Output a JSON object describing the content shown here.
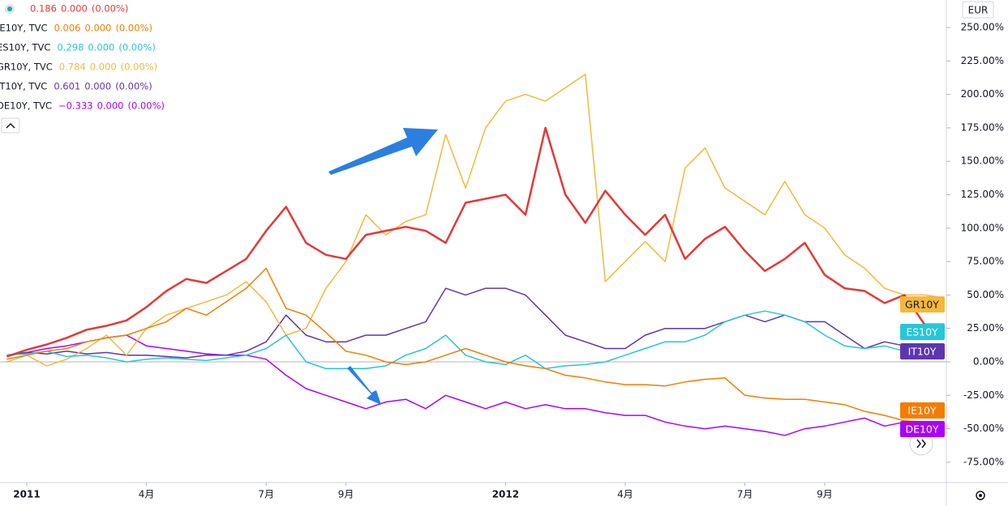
{
  "chart_data": {
    "type": "line",
    "currency": "EUR",
    "categories": [
      null,
      "2011",
      null,
      null,
      null,
      null,
      null,
      "4月",
      null,
      null,
      null,
      null,
      null,
      "7月",
      null,
      null,
      null,
      "9月",
      null,
      null,
      null,
      null,
      null,
      null,
      null,
      "2012",
      null,
      null,
      null,
      null,
      null,
      "4月",
      null,
      null,
      null,
      null,
      null,
      "7月",
      null,
      null,
      null,
      "9月",
      null,
      null,
      null,
      null,
      null,
      null
    ],
    "ylim": [
      -89.6,
      270.6
    ],
    "yticks": [
      {
        "value": 250,
        "label": "250.00%"
      },
      {
        "value": 225,
        "label": "225.00%"
      },
      {
        "value": 200,
        "label": "200.00%"
      },
      {
        "value": 175,
        "label": "175.00%"
      },
      {
        "value": 150,
        "label": "150.00%"
      },
      {
        "value": 125,
        "label": "125.00%"
      },
      {
        "value": 100,
        "label": "100.00%"
      },
      {
        "value": 75,
        "label": "75.00%"
      },
      {
        "value": 50,
        "label": "50.00%"
      },
      {
        "value": 25,
        "label": "25.00%"
      },
      {
        "value": 0,
        "label": "0.00%"
      },
      {
        "value": -25,
        "label": "-25.00%"
      },
      {
        "value": -50,
        "label": "-50.00%"
      },
      {
        "value": -75,
        "label": "-75.00%"
      }
    ],
    "series": [
      {
        "color": "#e53935",
        "last": "0.186",
        "change": "0.000",
        "change_pct": "(0.00%)",
        "values": [
          4,
          9,
          13,
          18,
          24,
          27,
          31,
          41,
          53,
          62,
          59,
          68,
          77,
          98,
          116,
          89,
          80,
          77,
          95,
          98,
          101,
          98,
          89,
          119,
          122,
          125,
          110,
          175,
          125,
          104,
          128,
          110,
          95,
          110,
          77,
          92,
          101,
          83,
          68,
          77,
          89,
          65,
          55,
          53,
          44,
          50,
          28,
          28
        ]
      },
      {
        "name": "IE10Y, TVC",
        "tag": "IE10Y",
        "color": "#f57c00",
        "last": "0.006",
        "change": "0.000",
        "change_pct": "(0.00%)",
        "values": [
          2,
          5,
          8,
          10,
          15,
          18,
          20,
          25,
          30,
          40,
          35,
          45,
          55,
          70,
          40,
          35,
          22,
          8,
          5,
          0,
          -2,
          0,
          5,
          10,
          5,
          0,
          -3,
          -5,
          -10,
          -12,
          -15,
          -17,
          -17,
          -18,
          -15,
          -13,
          -12,
          -25,
          -27,
          -28,
          -28,
          -30,
          -32,
          -37,
          -40,
          -44,
          -45,
          -45
        ]
      },
      {
        "name": "ES10Y, TVC",
        "tag": "ES10Y",
        "color": "#26c6da",
        "last": "0.298",
        "change": "0.000",
        "change_pct": "(0.00%)",
        "values": [
          5,
          6,
          8,
          4,
          5,
          3,
          0,
          2,
          3,
          2,
          1,
          3,
          5,
          10,
          20,
          0,
          -5,
          -5,
          -5,
          -3,
          5,
          10,
          20,
          5,
          0,
          -2,
          5,
          -5,
          -3,
          -2,
          0,
          5,
          10,
          15,
          15,
          20,
          30,
          35,
          38,
          35,
          30,
          20,
          12,
          10,
          12,
          8,
          5,
          5
        ]
      },
      {
        "name": "GR10Y, TVC",
        "tag": "GR10Y",
        "color": "#f5b83a",
        "last": "0.784",
        "change": "0.000",
        "change_pct": "(0.00%)",
        "values": [
          0,
          5,
          -3,
          2,
          10,
          20,
          5,
          25,
          35,
          40,
          45,
          50,
          60,
          45,
          20,
          25,
          55,
          75,
          110,
          95,
          105,
          110,
          170,
          130,
          175,
          195,
          200,
          195,
          205,
          215,
          60,
          75,
          90,
          75,
          145,
          160,
          130,
          120,
          110,
          135,
          110,
          100,
          80,
          70,
          55,
          50,
          50,
          48
        ]
      },
      {
        "name": "IT10Y, TVC",
        "tag": "IT10Y",
        "color": "#5e35b1",
        "last": "0.601",
        "change": "0.000",
        "change_pct": "(0.00%)",
        "values": [
          5,
          7,
          6,
          8,
          6,
          7,
          5,
          5,
          4,
          3,
          5,
          5,
          8,
          15,
          35,
          20,
          15,
          15,
          20,
          20,
          25,
          30,
          55,
          50,
          55,
          55,
          50,
          35,
          20,
          15,
          10,
          10,
          20,
          25,
          25,
          25,
          30,
          35,
          30,
          35,
          30,
          30,
          20,
          10,
          15,
          12,
          10,
          10
        ]
      },
      {
        "name": "DE10Y, TVC",
        "tag": "DE10Y",
        "color": "#aa00ff",
        "last": "−0.333",
        "change": "0.000",
        "change_pct": "(0.00%)",
        "values": [
          5,
          7,
          10,
          12,
          15,
          18,
          20,
          12,
          10,
          8,
          6,
          5,
          5,
          2,
          -10,
          -20,
          -25,
          -30,
          -35,
          -30,
          -28,
          -35,
          -25,
          -30,
          -35,
          -30,
          -35,
          -32,
          -35,
          -35,
          -38,
          -40,
          -40,
          -45,
          -48,
          -50,
          -48,
          -50,
          -52,
          -55,
          -50,
          -48,
          -45,
          -42,
          -48,
          -45,
          -47,
          -45
        ]
      }
    ]
  }
}
